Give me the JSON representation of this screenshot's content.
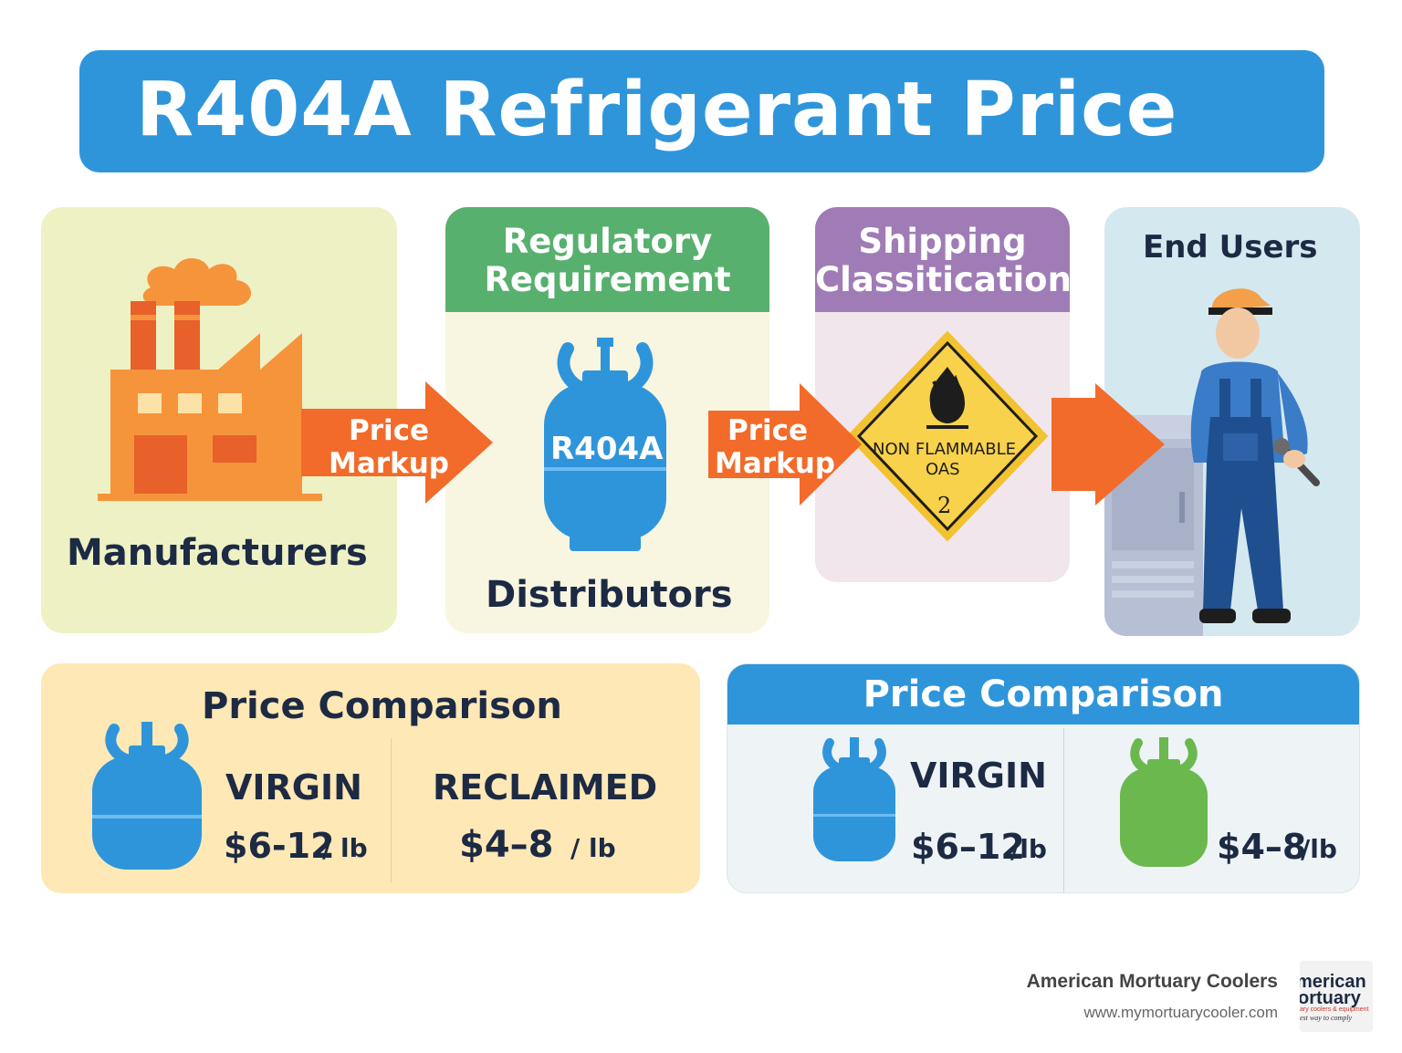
{
  "title": "R404A Refrigerant Price",
  "stages": {
    "manufacturers": {
      "label": "Manufacturers"
    },
    "distributors": {
      "header_line1": "Regulatory",
      "header_line2": "Requirement",
      "cylinder_label": "R404A",
      "label": "Distributors"
    },
    "shipping": {
      "header_line1": "Shipping",
      "header_line2": "Classitication",
      "sign_line1": "NON FLAMMABLE",
      "sign_line2": "OAS",
      "sign_class": "2"
    },
    "end_users": {
      "label": "End Users"
    }
  },
  "arrows": [
    {
      "line1": "Price",
      "line2": "Markup"
    },
    {
      "line1": "Price",
      "line2": "Markup"
    },
    {
      "line1": "",
      "line2": ""
    }
  ],
  "comparison_left": {
    "title": "Price Comparison",
    "virgin_label": "VIRGIN",
    "virgin_price": "$6-12",
    "virgin_unit": "/ lb",
    "reclaimed_label": "RECLAIMED",
    "reclaimed_price": "$4–8",
    "reclaimed_unit": "/ lb"
  },
  "comparison_right": {
    "title": "Price Comparison",
    "virgin_label": "VIRGIN",
    "virgin_price": "$6–12",
    "virgin_unit": "/lb",
    "reclaimed_price": "$4–8",
    "reclaimed_unit": "/lb"
  },
  "footer": {
    "company": "American Mortuary Coolers",
    "url": "www.mymortuarycooler.com",
    "logo_line1": "merican",
    "logo_line2": "ortuary",
    "logo_line3": "ary coolers & equipment",
    "logo_line4": "est way to comply"
  },
  "colors": {
    "brand_blue": "#2f95db",
    "orange": "#f26b2a",
    "green": "#58b06e",
    "purple": "#a07cb6",
    "navy_text": "#1d2a44"
  },
  "icons": [
    "factory-icon",
    "refrigerant-cylinder-icon",
    "hazard-class-2-sign-icon",
    "worker-icon",
    "refrigeration-unit-icon"
  ]
}
